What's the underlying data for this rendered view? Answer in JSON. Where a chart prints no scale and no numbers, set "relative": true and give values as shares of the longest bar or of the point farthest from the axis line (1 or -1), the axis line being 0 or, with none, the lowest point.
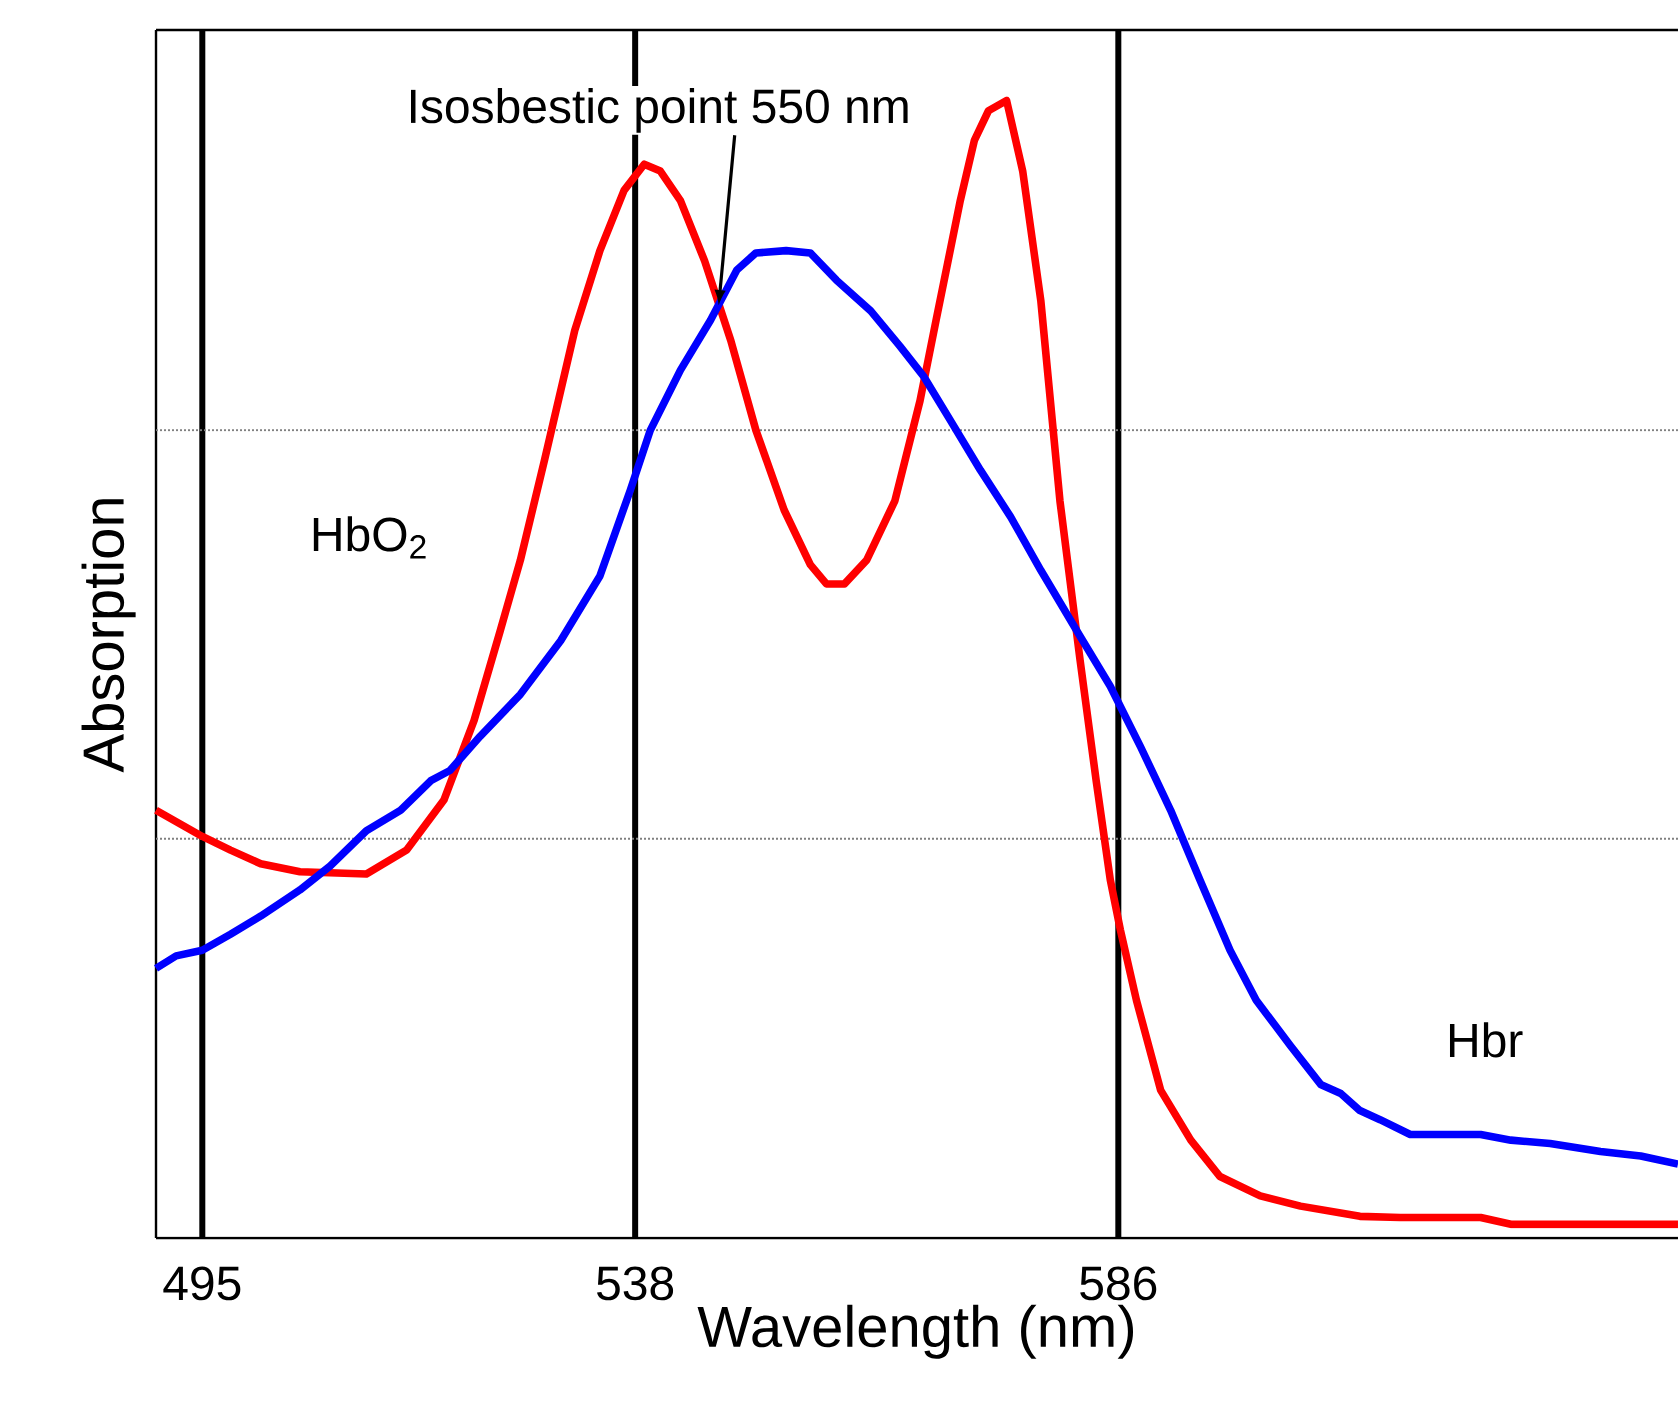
{
  "chart_data": {
    "type": "line",
    "relative": true,
    "xlabel": "Wavelength (nm)",
    "ylabel": "Absorption",
    "xlim": [
      490.4,
      641.6
    ],
    "xticks": [
      495,
      538,
      586
    ],
    "annotations": [
      {
        "text": "Isosbestic point  550 nm",
        "x": 546.3,
        "y": 0.82
      }
    ],
    "ref_lines": [
      {
        "axis": "x",
        "value": 495,
        "color": "#000000"
      },
      {
        "axis": "x",
        "value": 538,
        "color": "#000000"
      },
      {
        "axis": "x",
        "value": 586,
        "color": "#000000"
      },
      {
        "axis": "y",
        "value": 0.71,
        "color": "#808080",
        "line_style": "dotted"
      },
      {
        "axis": "y",
        "value": 0.351,
        "color": "#808080",
        "line_style": "dotted"
      }
    ],
    "series": [
      {
        "name": "HbO$_{2}$",
        "color": "#ff0000",
        "x": [
          490.4,
          495,
          497.8,
          500.8,
          504.7,
          511.3,
          515.3,
          519.0,
          522.0,
          524.6,
          526.6,
          529.0,
          532.0,
          534.5,
          536.9,
          538.9,
          540.5,
          542.5,
          544.9,
          547.5,
          550.0,
          552.8,
          555.4,
          557.0,
          558.8,
          561.0,
          563.8,
          566.3,
          567.9,
          570.3,
          571.7,
          573.1,
          574.9,
          576.5,
          578.3,
          580.2,
          582.2,
          583.8,
          585.2,
          586.2,
          587.8,
          590.2,
          593.2,
          596.1,
          600.1,
          604.1,
          610.0,
          614.0,
          622.0,
          625.0,
          633.9,
          641.6
        ],
        "values": [
          0.376,
          0.353,
          0.341,
          0.329,
          0.322,
          0.32,
          0.341,
          0.385,
          0.455,
          0.534,
          0.596,
          0.684,
          0.798,
          0.868,
          0.921,
          0.944,
          0.938,
          0.912,
          0.859,
          0.789,
          0.71,
          0.64,
          0.592,
          0.575,
          0.575,
          0.596,
          0.648,
          0.736,
          0.807,
          0.912,
          0.965,
          0.991,
          1.0,
          0.938,
          0.824,
          0.648,
          0.508,
          0.402,
          0.315,
          0.271,
          0.209,
          0.13,
          0.086,
          0.054,
          0.037,
          0.028,
          0.019,
          0.018,
          0.018,
          0.012,
          0.012,
          0.012
        ]
      },
      {
        "name": "Hbr",
        "color": "#0000ff",
        "x": [
          490.4,
          492.4,
          495,
          497.8,
          500.8,
          504.7,
          507.7,
          511.3,
          514.7,
          517.7,
          519.6,
          522.6,
          526.6,
          530.6,
          534.5,
          537.5,
          539.5,
          542.5,
          545.5,
          548.1,
          550.0,
          553.0,
          555.4,
          558.0,
          561.4,
          564.3,
          566.7,
          569.3,
          572.3,
          575.3,
          578.3,
          582.2,
          585.2,
          588.2,
          591.2,
          594.1,
          597.1,
          599.7,
          603.1,
          606.1,
          608.1,
          610.0,
          612.0,
          615.0,
          622.0,
          625.0,
          628.9,
          633.9,
          637.9,
          641.6
        ],
        "values": [
          0.237,
          0.248,
          0.253,
          0.267,
          0.283,
          0.306,
          0.327,
          0.358,
          0.376,
          0.402,
          0.411,
          0.441,
          0.478,
          0.525,
          0.582,
          0.657,
          0.71,
          0.763,
          0.807,
          0.851,
          0.866,
          0.868,
          0.866,
          0.842,
          0.815,
          0.784,
          0.757,
          0.719,
          0.675,
          0.634,
          0.587,
          0.529,
          0.485,
          0.432,
          0.376,
          0.315,
          0.253,
          0.209,
          0.169,
          0.135,
          0.127,
          0.112,
          0.104,
          0.091,
          0.091,
          0.086,
          0.083,
          0.076,
          0.072,
          0.065
        ]
      }
    ]
  }
}
